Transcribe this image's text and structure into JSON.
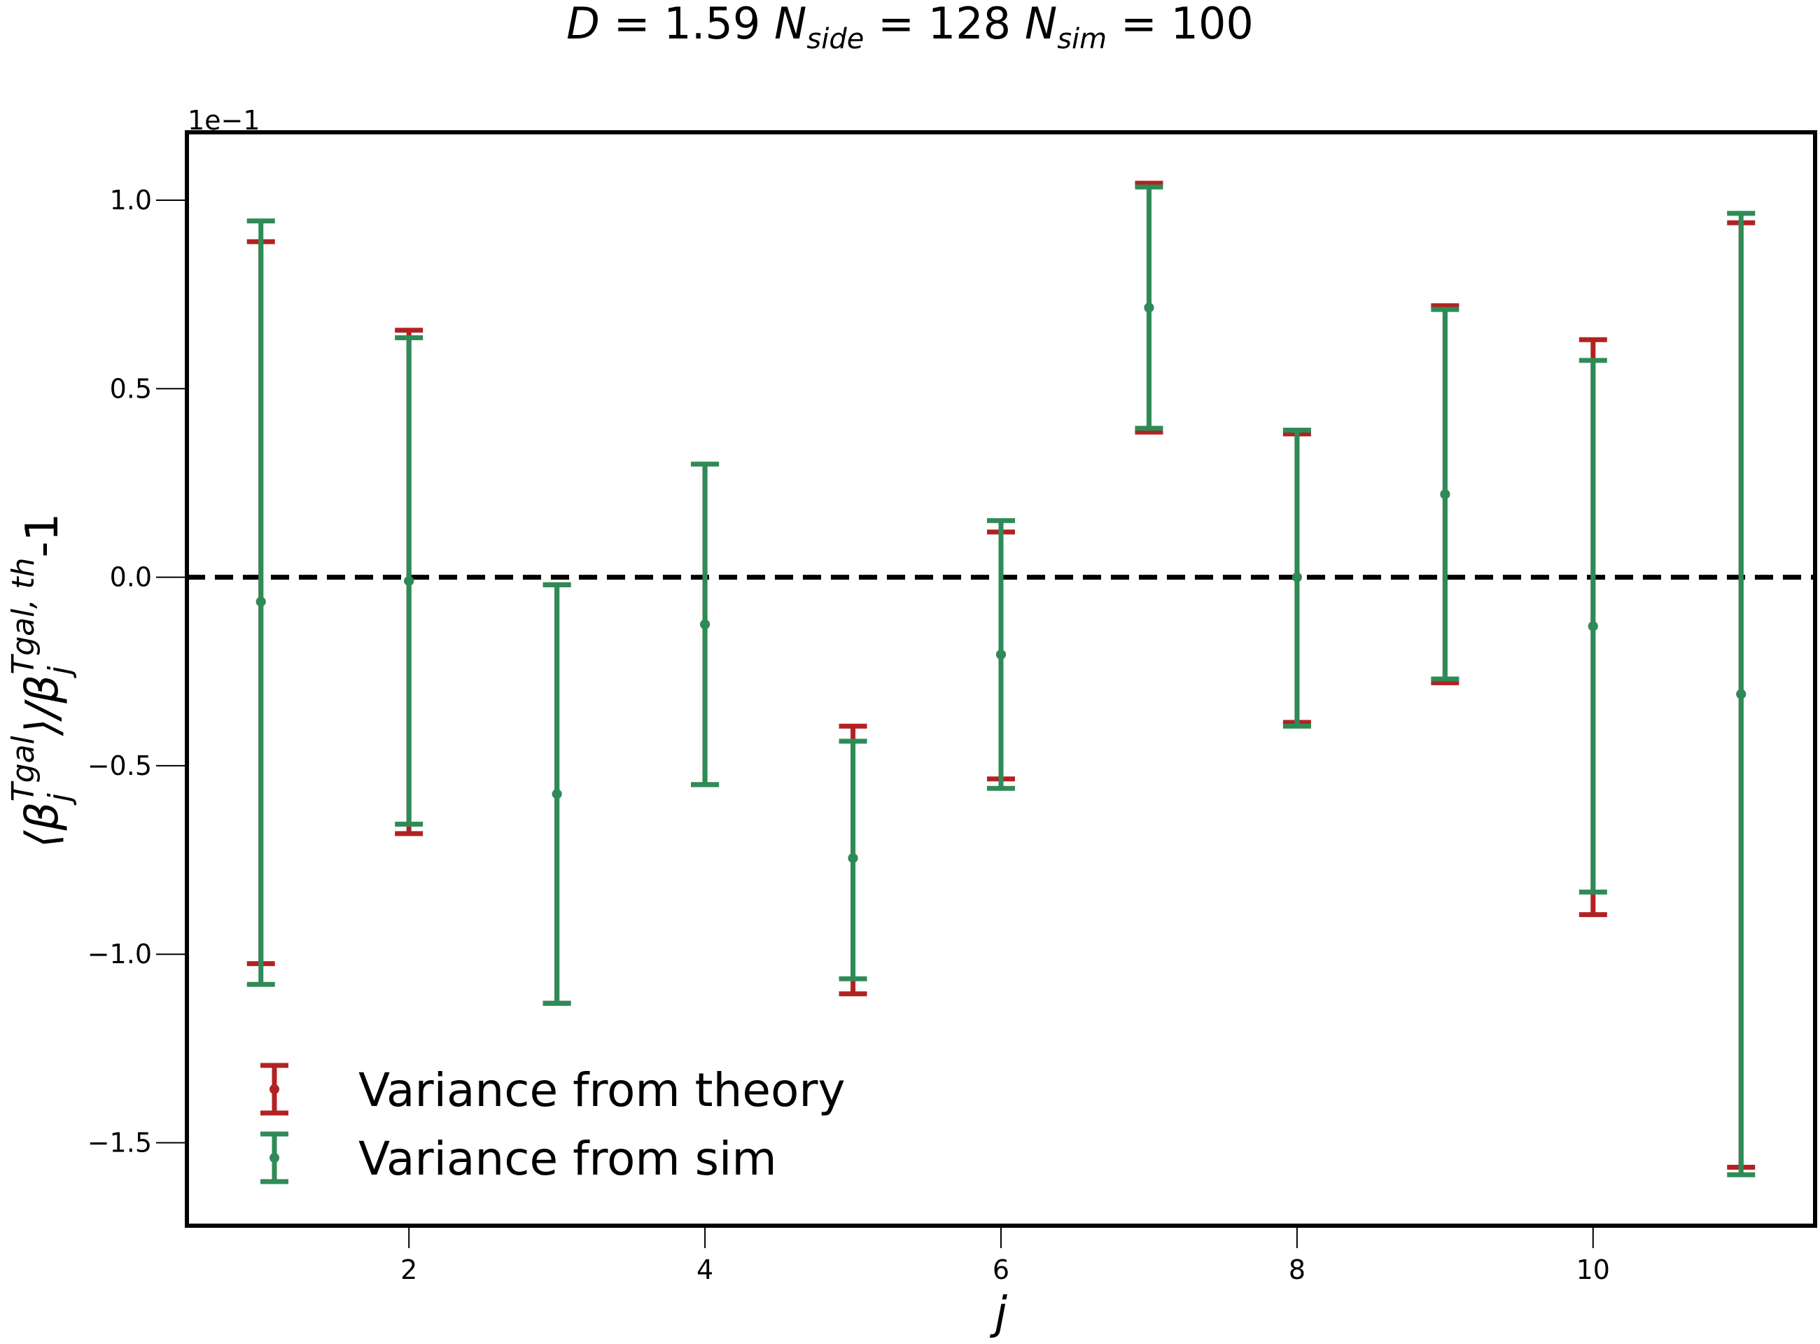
{
  "chart_data": {
    "type": "errorbar",
    "title": "D = 1.59 N_side = 128 N_sim = 100",
    "title_parts": {
      "D_label": "D",
      "D_value": "1.59",
      "nside_label": "N",
      "nside_sub": "side",
      "nside_value": "128",
      "nsim_label": "N",
      "nsim_sub": "sim",
      "nsim_value": "100",
      "equals": " = "
    },
    "xlabel": "j",
    "ylabel": "⟨β_j^Tgal⟩/β_j^Tgal, th -1",
    "ylabel_parts": {
      "open": "⟨β",
      "sub_j": "j",
      "sup_tgal": "Tgal",
      "mid": "⟩/β",
      "sup_tgal_th": "Tgal, th",
      "tail": "-1"
    },
    "scale_note": "1e−1",
    "xlim": [
      0.5,
      11.5
    ],
    "ylim": [
      -1.72,
      1.18
    ],
    "xticks": [
      2,
      4,
      6,
      8,
      10
    ],
    "yticks": [
      1.0,
      0.5,
      0.0,
      -0.5,
      -1.0,
      -1.5
    ],
    "ytick_labels": [
      "1.0",
      "0.5",
      "0.0",
      "−0.5",
      "−1.0",
      "−1.5"
    ],
    "reference_line": {
      "y": 0.0,
      "style": "dashed",
      "color": "#000000"
    },
    "x": [
      1,
      2,
      3,
      4,
      5,
      6,
      7,
      8,
      9,
      10,
      11
    ],
    "means": [
      -0.065,
      -0.01,
      -0.575,
      -0.125,
      -0.745,
      -0.205,
      0.715,
      0.0,
      0.22,
      -0.13,
      -0.31
    ],
    "series": [
      {
        "name": "Variance from theory",
        "color": "#b22222",
        "upper": [
          0.89,
          0.655,
          -0.02,
          0.3,
          -0.395,
          0.12,
          1.045,
          0.38,
          0.72,
          0.63,
          0.94
        ],
        "lower": [
          -1.025,
          -0.68,
          -1.13,
          -0.55,
          -1.105,
          -0.535,
          0.385,
          -0.385,
          -0.28,
          -0.895,
          -1.565
        ]
      },
      {
        "name": "Variance from sim",
        "color": "#2e8b57",
        "upper": [
          0.945,
          0.635,
          -0.02,
          0.3,
          -0.435,
          0.15,
          1.035,
          0.39,
          0.71,
          0.575,
          0.965
        ],
        "lower": [
          -1.08,
          -0.655,
          -1.13,
          -0.55,
          -1.065,
          -0.56,
          0.395,
          -0.395,
          -0.27,
          -0.835,
          -1.585
        ]
      }
    ],
    "legend_position": "lower-left"
  }
}
